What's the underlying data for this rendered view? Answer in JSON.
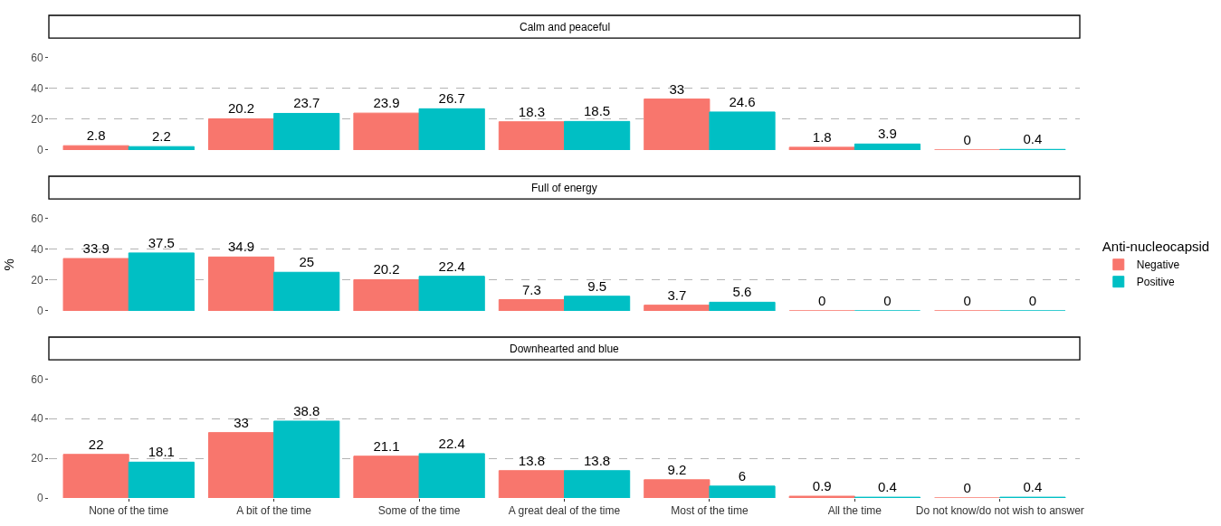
{
  "chart_data": [
    {
      "type": "bar",
      "title": "Calm and peaceful",
      "categories": [
        null,
        null,
        null,
        null,
        null,
        null,
        null
      ],
      "series": [
        {
          "color": "#f8766d",
          "values": [
            2.8,
            20.2,
            23.9,
            18.3,
            33,
            1.8,
            0
          ]
        },
        {
          "color": "#00bfc4",
          "values": [
            2.2,
            23.7,
            26.7,
            18.5,
            24.6,
            3.9,
            0.4
          ]
        }
      ],
      "ylim": [
        0,
        60
      ],
      "yticks": [
        0,
        20,
        40,
        60
      ],
      "grid": "y",
      "data_labels": true,
      "tick_labels": "y"
    },
    {
      "type": "bar",
      "title": "Full of energy",
      "ylabel": "%",
      "legend_title": "Anti-nucleocapsid",
      "legend": "right",
      "categories": [
        null,
        null,
        null,
        null,
        null,
        null,
        null
      ],
      "series": [
        {
          "name": "Negative",
          "color": "#f8766d",
          "values": [
            33.9,
            34.9,
            20.2,
            7.3,
            3.7,
            0,
            0
          ]
        },
        {
          "name": "Positive",
          "color": "#00bfc4",
          "values": [
            37.5,
            25,
            22.4,
            9.5,
            5.6,
            0,
            0
          ]
        }
      ],
      "ylim": [
        0,
        60
      ],
      "yticks": [
        0,
        20,
        40,
        60
      ],
      "grid": "y",
      "data_labels": true,
      "tick_labels": "y"
    },
    {
      "type": "bar",
      "title": "Downhearted and blue",
      "categories": [
        "None of the time",
        "A bit of the time",
        "Some of the time",
        "A great deal of the time",
        "Most of the time",
        "All the time",
        "Do not know/do not wish to answer"
      ],
      "series": [
        {
          "color": "#f8766d",
          "values": [
            22,
            33,
            21.1,
            13.8,
            9.2,
            0.9,
            0
          ]
        },
        {
          "color": "#00bfc4",
          "values": [
            18.1,
            38.8,
            22.4,
            13.8,
            6,
            0.4,
            0.4
          ]
        }
      ],
      "ylim": [
        0,
        60
      ],
      "yticks": [
        0,
        20,
        40,
        60
      ],
      "grid": "y",
      "data_labels": true
    }
  ]
}
